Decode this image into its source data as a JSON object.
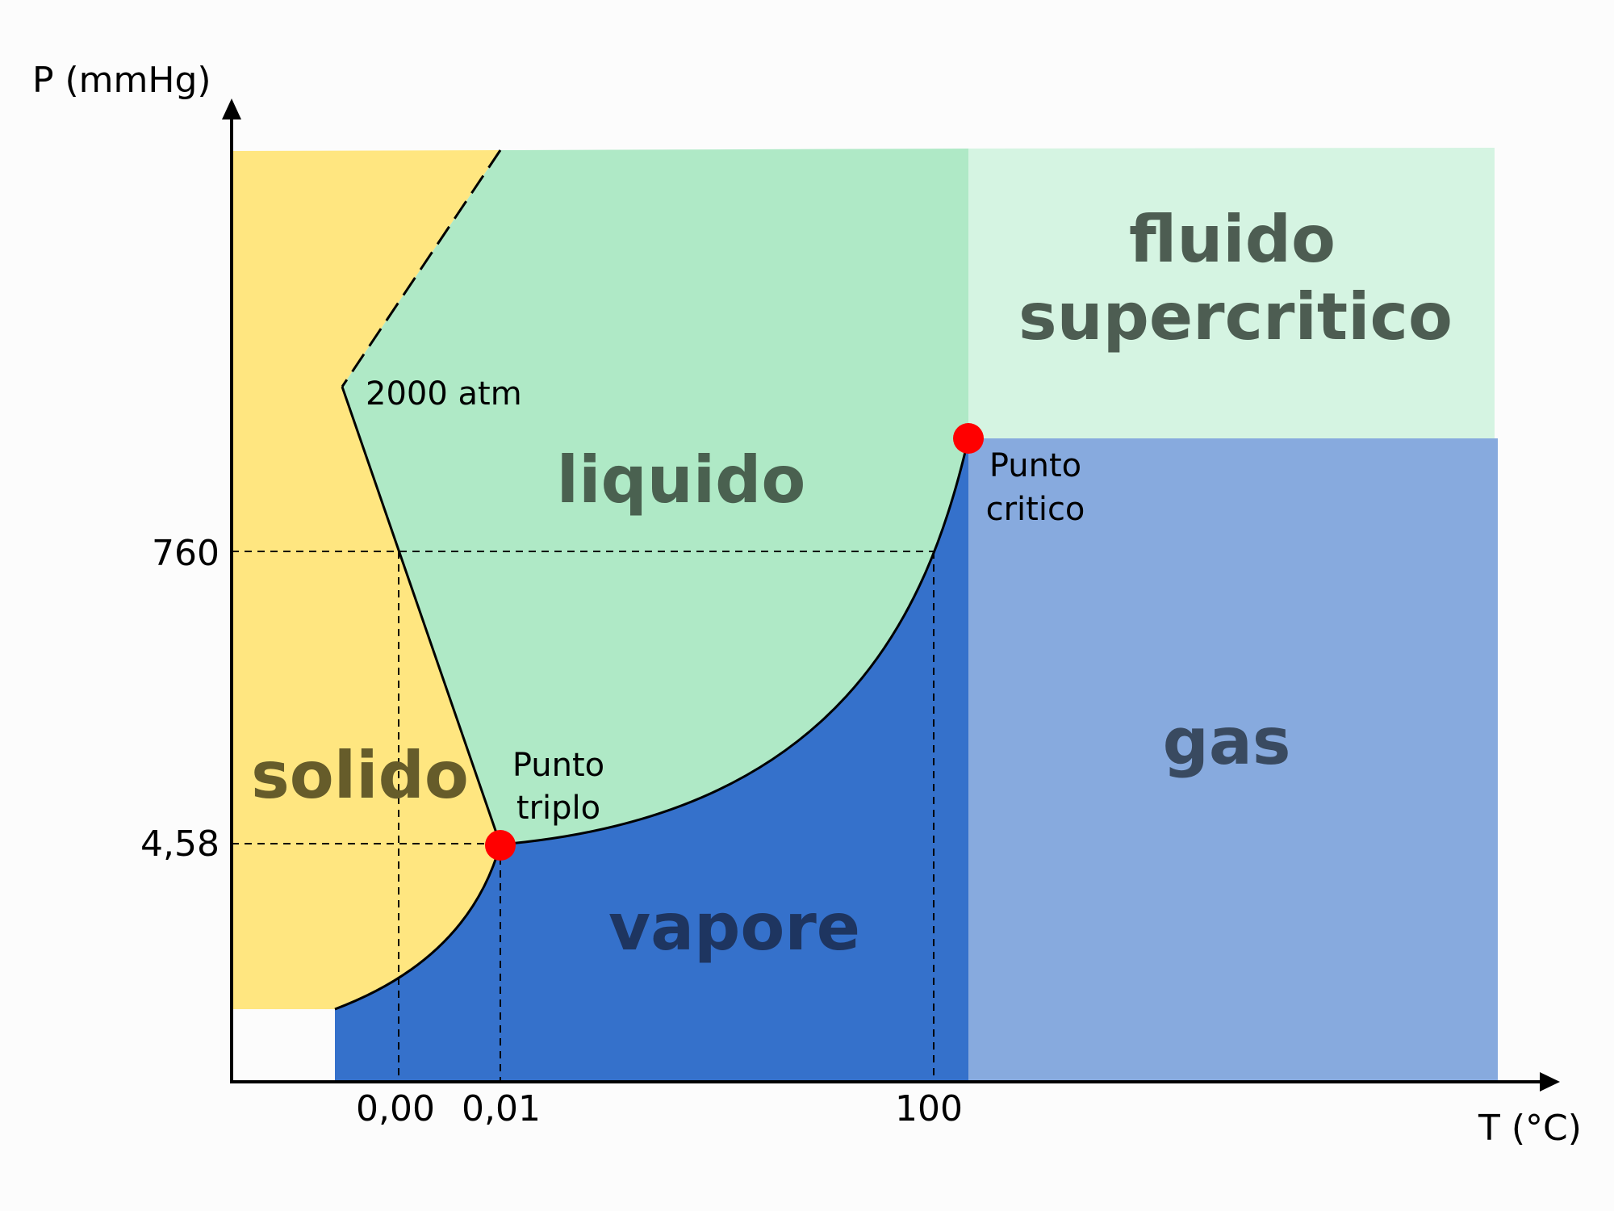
{
  "diagram": {
    "type": "phase-diagram",
    "axes": {
      "y_title": "P (mmHg)",
      "x_title": "T (°C)",
      "y_ticks": [
        "760",
        "4,58"
      ],
      "x_ticks": [
        "0,00",
        "0,01",
        "100"
      ]
    },
    "regions": {
      "solid": {
        "label": "solido",
        "color": "#ffe680",
        "text_color": "#665c2a"
      },
      "liquid": {
        "label": "liquido",
        "color": "#afe9c6",
        "text_color": "#4a6150"
      },
      "vapor": {
        "label": "vapore",
        "color": "#3571cb",
        "text_color": "#1e3560"
      },
      "gas": {
        "label": "gas",
        "color": "#87aade",
        "text_color": "#394a60"
      },
      "supercritical": {
        "label_line1": "fluido",
        "label_line2": "supercritico",
        "color": "#d5f4e2",
        "text_color": "#4d5d52"
      }
    },
    "annotations": {
      "high_pressure": "2000 atm",
      "triple_point_line1": "Punto",
      "triple_point_line2": "triplo",
      "critical_point_line1": "Punto",
      "critical_point_line2": "critico"
    },
    "point_color": "#ff0000"
  }
}
